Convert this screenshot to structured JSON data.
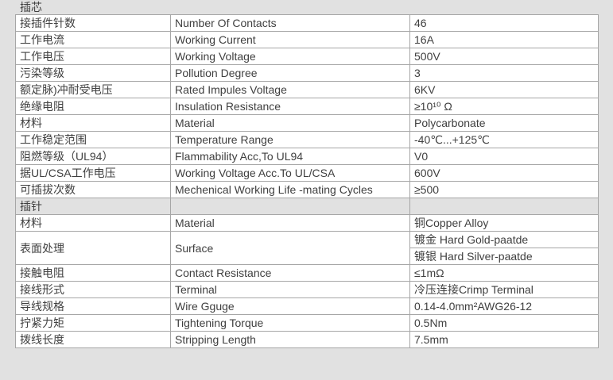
{
  "colors": {
    "page_bg": "#e1e1e1",
    "cell_bg": "#ffffff",
    "border": "#a6a6a6",
    "text": "#404040"
  },
  "sections": [
    {
      "title": "插芯",
      "rows": [
        {
          "cn": "接插件针数",
          "en": "Number Of Contacts",
          "value": "46"
        },
        {
          "cn": "工作电流",
          "en": "Working Current",
          "value": "16A"
        },
        {
          "cn": "工作电压",
          "en": "Working Voltage",
          "value": "500V"
        },
        {
          "cn": "污染等级",
          "en": "Pollution Degree",
          "value": "3"
        },
        {
          "cn": "额定脉)冲耐受电压",
          "en": "Rated Impules Voltage",
          "value": "6KV"
        },
        {
          "cn": "绝缘电阻",
          "en": "Insulation Resistance",
          "value": "≥10¹⁰ Ω"
        },
        {
          "cn": "材料",
          "en": "Material",
          "value": "Polycarbonate"
        },
        {
          "cn": "工作稳定范围",
          "en": "Temperature Range",
          "value": "-40℃...+125℃"
        },
        {
          "cn": "阻燃等级（UL94）",
          "en": "Flammability Acc,To UL94",
          "value": "V0"
        },
        {
          "cn": "据UL/CSA工作电压",
          "en": "Working Voltage Acc.To UL/CSA",
          "value": "600V"
        },
        {
          "cn": "可插拔次数",
          "en": "Mechenical Working Life -mating Cycles",
          "value": "≥500"
        }
      ]
    },
    {
      "title": "插针",
      "rows": [
        {
          "cn": "材料",
          "en": "Material",
          "value": "铜Copper Alloy"
        },
        {
          "cn": "表面处理",
          "en": "Surface",
          "values": [
            "镀金 Hard Gold-paatde",
            "镀银 Hard Silver-paatde"
          ]
        },
        {
          "cn": "接触电阻",
          "en": "Contact Resistance",
          "value": "≤1mΩ"
        },
        {
          "cn": "接线形式",
          "en": "Terminal",
          "value": "冷压连接Crimp Terminal"
        },
        {
          "cn": "导线规格",
          "en": "Wire Gguge",
          "value": "0.14-4.0mm²AWG26-12"
        },
        {
          "cn": "拧紧力矩",
          "en": "Tightening Torque",
          "value": "0.5Nm"
        },
        {
          "cn": "拨线长度",
          "en": "Stripping Length",
          "value": "7.5mm"
        }
      ]
    }
  ]
}
